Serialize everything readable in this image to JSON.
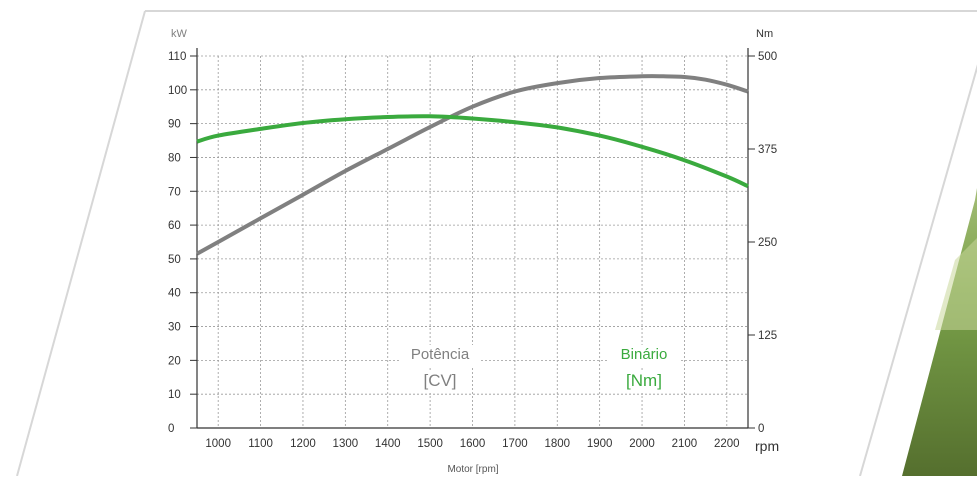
{
  "chart_data": {
    "type": "line",
    "xlabel": "Motor [rpm]",
    "x_unit": "rpm",
    "y_left_unit": "kW",
    "y_right_unit": "Nm",
    "x_ticks": [
      1000,
      1100,
      1200,
      1300,
      1400,
      1500,
      1600,
      1700,
      1800,
      1900,
      2000,
      2100,
      2200
    ],
    "y_left_ticks": [
      0,
      10,
      20,
      30,
      40,
      50,
      60,
      70,
      80,
      90,
      100,
      110
    ],
    "y_right_ticks": [
      0,
      125,
      250,
      375,
      500
    ],
    "xlim": [
      950,
      2250
    ],
    "ylim_left": [
      0,
      110
    ],
    "ylim_right": [
      0,
      500
    ],
    "grid": true,
    "series": [
      {
        "name": "Potência [CV]",
        "label_lines": [
          "Potência",
          "[CV]"
        ],
        "axis": "left",
        "color": "#808080",
        "x": [
          950,
          1000,
          1100,
          1200,
          1300,
          1400,
          1500,
          1600,
          1700,
          1800,
          1900,
          2000,
          2050,
          2100,
          2150,
          2200,
          2250
        ],
        "y": [
          51.5,
          55,
          62,
          69,
          76,
          82.5,
          89,
          95,
          99.5,
          102,
          103.5,
          104,
          104,
          103.8,
          103,
          101.5,
          99.5
        ]
      },
      {
        "name": "Binário [Nm]",
        "label_lines": [
          "Binário",
          "[Nm]"
        ],
        "axis": "right",
        "color": "#3aaa3e",
        "x": [
          950,
          1000,
          1100,
          1200,
          1300,
          1400,
          1500,
          1600,
          1700,
          1800,
          1900,
          2000,
          2100,
          2200,
          2250
        ],
        "y": [
          385,
          393,
          402,
          410,
          415,
          418,
          419,
          416,
          411,
          404,
          393,
          378,
          360,
          338,
          325
        ]
      }
    ]
  },
  "colors": {
    "frame": "#d7d7d7",
    "grid": "#9a9a9a",
    "axis": "#333333",
    "text": "#333333",
    "label_gray": "#808080",
    "label_green": "#3aaa3e",
    "photo_green": "#7aa24a"
  }
}
